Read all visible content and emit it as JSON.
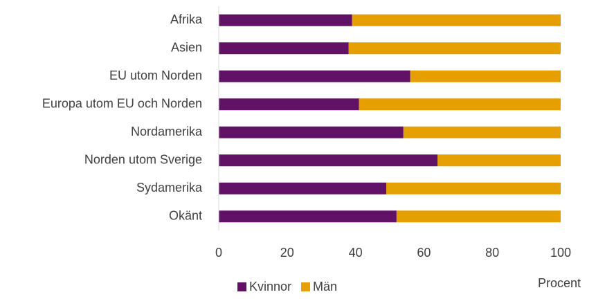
{
  "chart_data": {
    "type": "stacked-barh",
    "categories": [
      "Afrika",
      "Asien",
      "EU utom Norden",
      "Europa utom EU och Norden",
      "Nordamerika",
      "Norden utom Sverige",
      "Sydamerika",
      "Okänt"
    ],
    "series": [
      {
        "name": "Kvinnor",
        "color": "#611266",
        "values": [
          39,
          38,
          56,
          41,
          54,
          64,
          49,
          52
        ]
      },
      {
        "name": "Män",
        "color": "#e69f00",
        "values": [
          61,
          62,
          44,
          59,
          46,
          36,
          51,
          48
        ]
      }
    ],
    "xlim": [
      0,
      100
    ],
    "xticks": [
      0,
      20,
      40,
      60,
      80,
      100
    ],
    "x_label": "Procent",
    "legend": "bottom"
  }
}
